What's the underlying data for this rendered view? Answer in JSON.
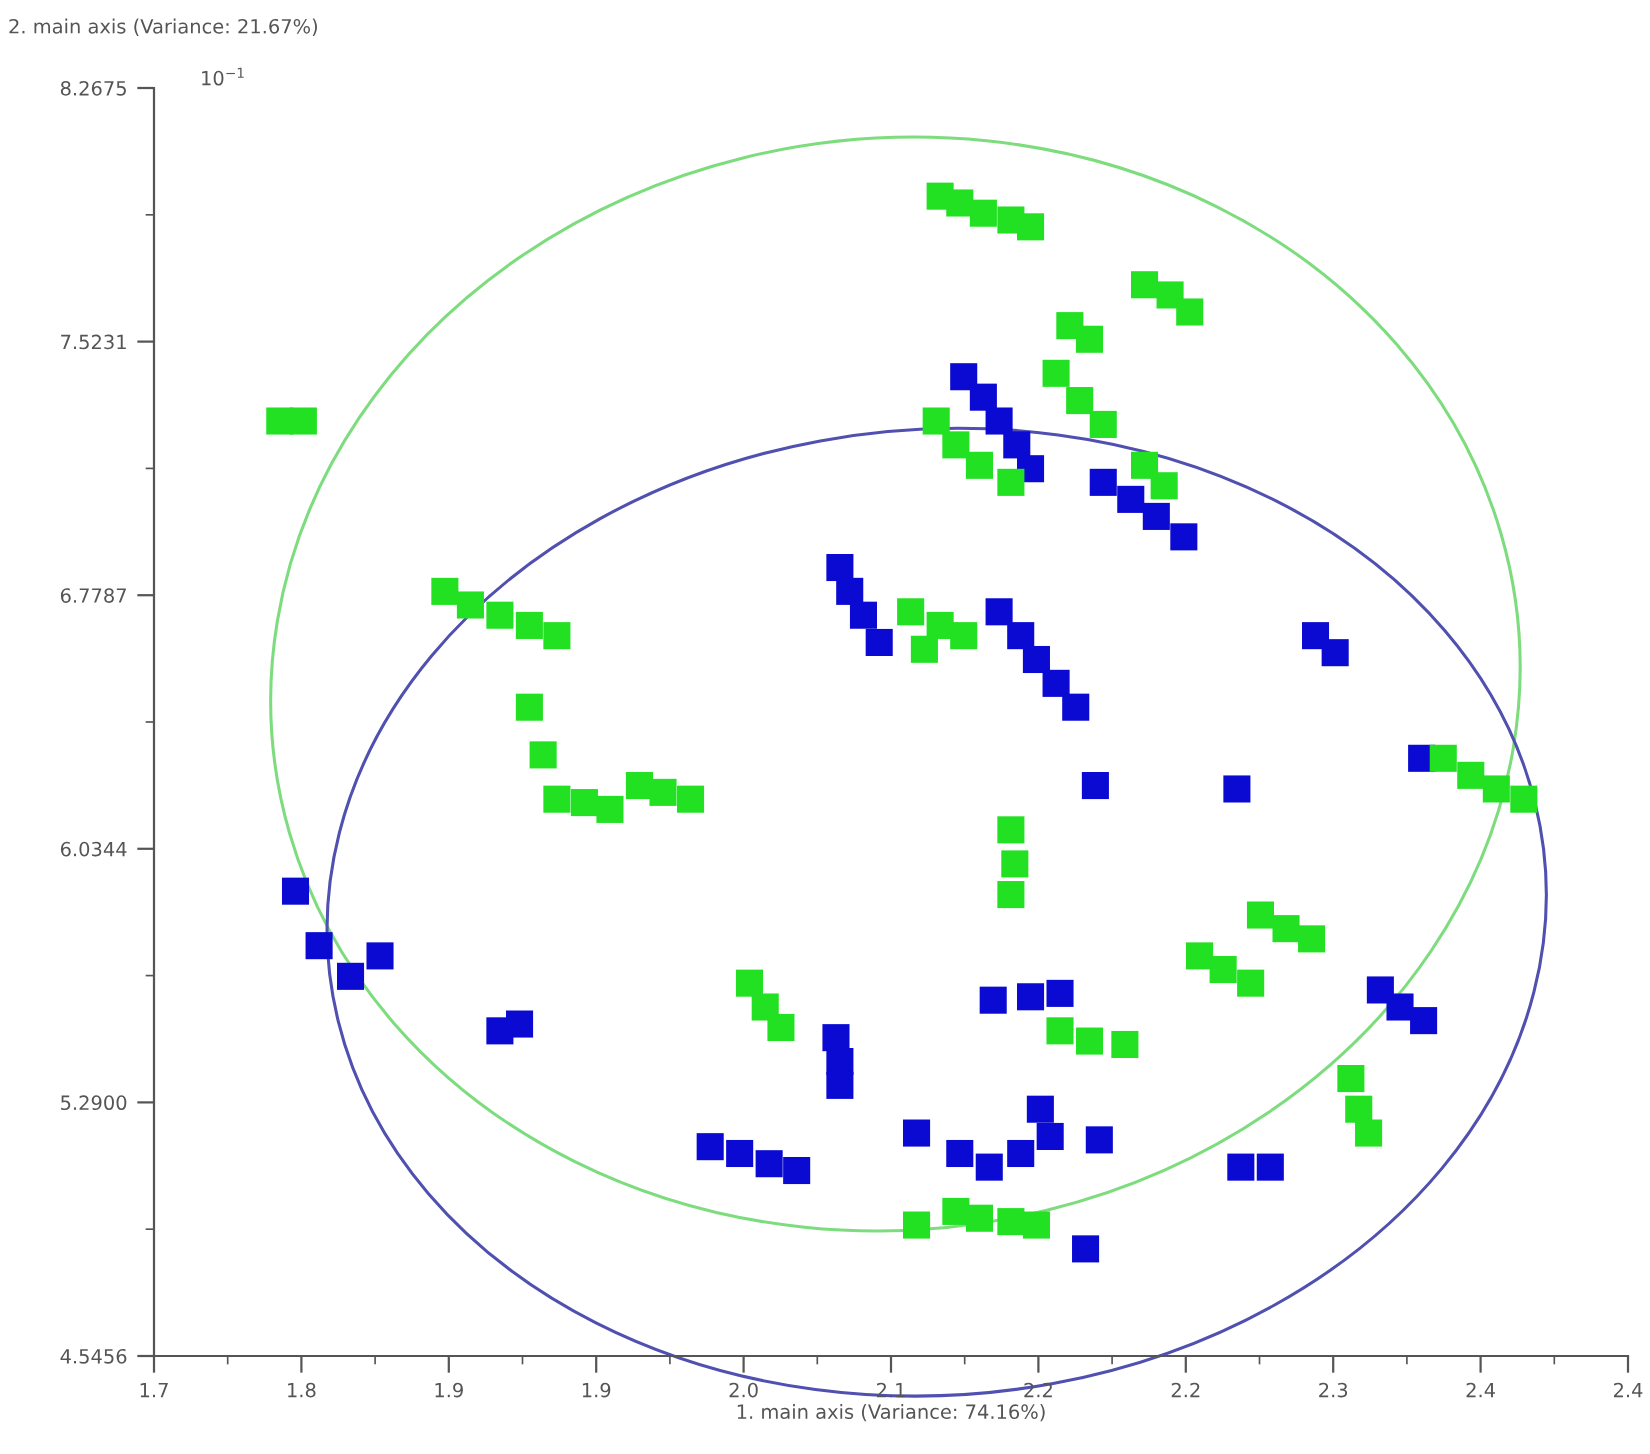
{
  "chart_data": {
    "type": "scatter",
    "xlabel": "1. main axis (Variance: 74.16%)",
    "ylabel": "2. main axis (Variance: 21.67%)",
    "annotations": [
      "10$^{−1}$"
    ],
    "xlim": [
      1.7,
      2.45
    ],
    "ylim": [
      4.5456,
      8.2675
    ],
    "xticks": [
      {
        "value": 1.7,
        "label": "1.7"
      },
      {
        "value": 1.7375,
        "label": null
      },
      {
        "value": 1.775,
        "label": "1.8"
      },
      {
        "value": 1.8125,
        "label": null
      },
      {
        "value": 1.85,
        "label": "1.9"
      },
      {
        "value": 1.8875,
        "label": null
      },
      {
        "value": 1.925,
        "label": "1.9"
      },
      {
        "value": 1.9625,
        "label": null
      },
      {
        "value": 2.0,
        "label": "2.0"
      },
      {
        "value": 2.0375,
        "label": null
      },
      {
        "value": 2.075,
        "label": "2.1"
      },
      {
        "value": 2.1125,
        "label": null
      },
      {
        "value": 2.15,
        "label": "2.2"
      },
      {
        "value": 2.1875,
        "label": null
      },
      {
        "value": 2.225,
        "label": "2.2"
      },
      {
        "value": 2.2625,
        "label": null
      },
      {
        "value": 2.3,
        "label": "2.3"
      },
      {
        "value": 2.3375,
        "label": null
      },
      {
        "value": 2.375,
        "label": "2.4"
      },
      {
        "value": 2.4125,
        "label": null
      },
      {
        "value": 2.45,
        "label": "2.4"
      }
    ],
    "yticks": [
      {
        "value": 4.5456,
        "label": "4.5456"
      },
      {
        "value": 4.9178,
        "label": null
      },
      {
        "value": 5.29,
        "label": "5.2900"
      },
      {
        "value": 5.6622,
        "label": null
      },
      {
        "value": 6.0344,
        "label": "6.0344"
      },
      {
        "value": 6.4066,
        "label": null
      },
      {
        "value": 6.7787,
        "label": "6.7787"
      },
      {
        "value": 7.1509,
        "label": null
      },
      {
        "value": 7.5231,
        "label": "7.5231"
      },
      {
        "value": 7.8953,
        "label": null
      },
      {
        "value": 8.2675,
        "label": "8.2675"
      }
    ],
    "grid": false,
    "legend": false,
    "series": [
      {
        "marker": "square",
        "color": "#0a0ad2",
        "x": [
          2.112,
          2.122,
          2.13,
          2.139,
          2.146,
          2.183,
          2.197,
          2.21,
          2.224,
          2.049,
          2.054,
          2.061,
          2.069,
          2.13,
          2.141,
          2.149,
          2.159,
          2.169,
          2.291,
          2.301,
          2.179,
          2.251,
          2.345,
          1.772,
          1.784,
          1.8,
          1.815,
          1.876,
          1.886,
          2.324,
          2.334,
          2.346,
          2.047,
          2.049,
          2.049,
          2.127,
          2.146,
          2.161,
          2.088,
          1.983,
          1.998,
          2.013,
          2.027,
          2.11,
          2.125,
          2.141,
          2.156,
          2.181,
          2.151,
          2.253,
          2.268,
          2.174
        ],
        "values": [
          7.42,
          7.36,
          7.29,
          7.22,
          7.15,
          7.11,
          7.06,
          7.01,
          6.95,
          6.86,
          6.79,
          6.72,
          6.64,
          6.73,
          6.66,
          6.59,
          6.52,
          6.45,
          6.66,
          6.61,
          6.22,
          6.21,
          6.3,
          5.91,
          5.75,
          5.66,
          5.72,
          5.5,
          5.52,
          5.62,
          5.57,
          5.53,
          5.48,
          5.41,
          5.34,
          5.59,
          5.6,
          5.61,
          5.2,
          5.16,
          5.14,
          5.11,
          5.09,
          5.14,
          5.1,
          5.14,
          5.19,
          5.18,
          5.27,
          5.1,
          5.1,
          4.86
        ]
      },
      {
        "marker": "square",
        "color": "#22e022",
        "x": [
          1.764,
          1.776,
          2.1,
          2.11,
          2.122,
          2.136,
          2.146,
          2.204,
          2.217,
          2.227,
          2.166,
          2.176,
          2.098,
          2.108,
          2.12,
          2.136,
          2.159,
          2.171,
          2.183,
          2.204,
          2.214,
          1.848,
          1.861,
          1.876,
          1.891,
          1.905,
          2.085,
          2.1,
          2.092,
          2.112,
          1.891,
          1.898,
          1.905,
          1.919,
          1.932,
          1.947,
          1.959,
          1.973,
          2.356,
          2.37,
          2.383,
          2.397,
          2.136,
          2.138,
          2.136,
          2.003,
          2.011,
          2.019,
          2.263,
          2.276,
          2.289,
          2.232,
          2.244,
          2.258,
          2.161,
          2.176,
          2.194,
          2.309,
          2.313,
          2.318,
          2.088,
          2.108,
          2.12,
          2.136,
          2.149
        ],
        "values": [
          7.29,
          7.29,
          7.95,
          7.93,
          7.9,
          7.88,
          7.86,
          7.69,
          7.66,
          7.61,
          7.57,
          7.53,
          7.29,
          7.22,
          7.16,
          7.11,
          7.43,
          7.35,
          7.28,
          7.16,
          7.1,
          6.79,
          6.75,
          6.72,
          6.69,
          6.66,
          6.73,
          6.69,
          6.62,
          6.66,
          6.45,
          6.31,
          6.18,
          6.17,
          6.15,
          6.22,
          6.2,
          6.18,
          6.3,
          6.25,
          6.21,
          6.18,
          6.09,
          5.99,
          5.9,
          5.64,
          5.57,
          5.51,
          5.84,
          5.8,
          5.77,
          5.72,
          5.68,
          5.64,
          5.5,
          5.47,
          5.46,
          5.36,
          5.27,
          5.2,
          4.93,
          4.97,
          4.95,
          4.94,
          4.93
        ]
      }
    ]
  }
}
